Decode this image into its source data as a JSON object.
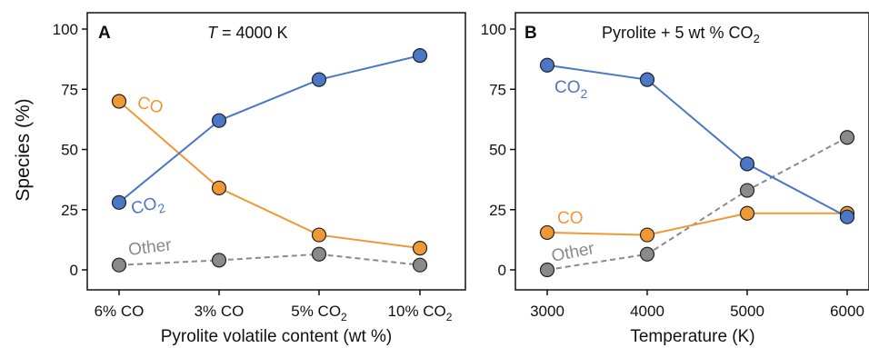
{
  "figure": {
    "ylabel": "Species (%)"
  },
  "colors": {
    "co2": "#4a77c6",
    "co": "#ef9836",
    "other": "#8a8a8a"
  },
  "chart_data": [
    {
      "type": "line",
      "panel": "A",
      "title_T": "T",
      "title_rest": " = 4000 K",
      "xlabel": "Pyrolite volatile content (wt %)",
      "categories": [
        {
          "main": "6% CO",
          "sub": ""
        },
        {
          "main": "3% CO",
          "sub": ""
        },
        {
          "main": "5% CO",
          "sub": "2"
        },
        {
          "main": "10% CO",
          "sub": "2"
        }
      ],
      "ylim": [
        0,
        100
      ],
      "yticks": [
        0,
        25,
        50,
        75,
        100
      ],
      "series": [
        {
          "key": "co2",
          "label_main": "CO",
          "label_sub": "2",
          "values": [
            28,
            62,
            79,
            89
          ],
          "dashed": false
        },
        {
          "key": "co",
          "label_main": "CO",
          "label_sub": "",
          "values": [
            70,
            34,
            14.5,
            9
          ],
          "dashed": false
        },
        {
          "key": "other",
          "label_main": "Other",
          "label_sub": "",
          "values": [
            2,
            4,
            6.5,
            2
          ],
          "dashed": true
        }
      ]
    },
    {
      "type": "line",
      "panel": "B",
      "title_main": "Pyrolite + 5 wt % CO",
      "title_sub": "2",
      "xlabel": "Temperature (K)",
      "x": [
        3000,
        4000,
        5000,
        6000
      ],
      "xticks": [
        "3000",
        "4000",
        "5000",
        "6000"
      ],
      "ylim": [
        0,
        100
      ],
      "yticks": [
        0,
        25,
        50,
        75,
        100
      ],
      "series": [
        {
          "key": "co2",
          "label_main": "CO",
          "label_sub": "2",
          "values": [
            85,
            79,
            44,
            22
          ],
          "dashed": false
        },
        {
          "key": "co",
          "label_main": "CO",
          "label_sub": "",
          "values": [
            15.5,
            14.5,
            23.5,
            23.5
          ],
          "dashed": false
        },
        {
          "key": "other",
          "label_main": "Other",
          "label_sub": "",
          "values": [
            0,
            6.5,
            33,
            55
          ],
          "dashed": true
        }
      ]
    }
  ]
}
